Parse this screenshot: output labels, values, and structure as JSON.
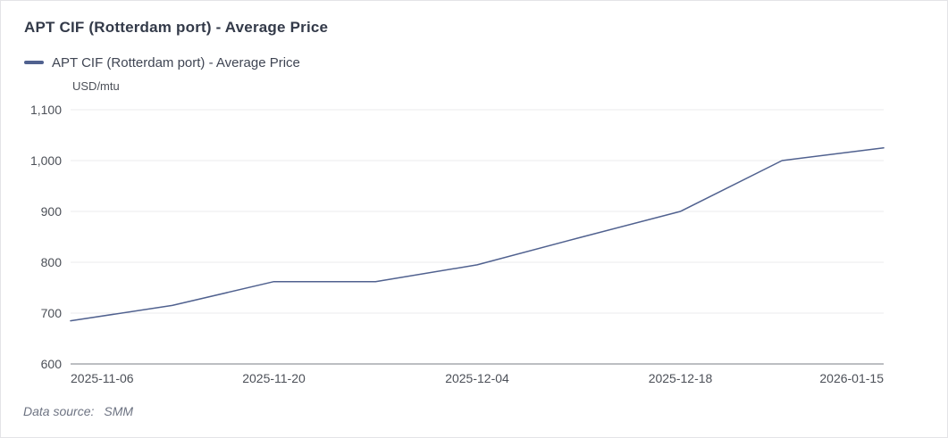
{
  "card": {
    "title": "APT CIF (Rotterdam port) - Average Price",
    "footer": {
      "label": "Data source:",
      "value": "SMM"
    }
  },
  "legend": {
    "label": "APT CIF (Rotterdam port) - Average Price",
    "marker_color": "#50618f"
  },
  "chart_data": {
    "type": "line",
    "title": "APT CIF (Rotterdam port) - Average Price",
    "series_name": "APT CIF (Rotterdam port) - Average Price",
    "unit_label": "USD/mtu",
    "categories": [
      "2025-11-06",
      "",
      "2025-11-20",
      "",
      "2025-12-04",
      "",
      "2025-12-18",
      "",
      "2026-01-15"
    ],
    "x_tick_labels": [
      "2025-11-06",
      "2025-11-20",
      "2025-12-04",
      "2025-12-18",
      "2026-01-15"
    ],
    "series": [
      {
        "name": "APT CIF (Rotterdam port) - Average Price",
        "values": [
          685,
          715,
          762,
          762,
          795,
          848,
          900,
          1000,
          1025
        ],
        "color": "#50618f"
      }
    ],
    "xlabel": "",
    "ylabel": "USD/mtu",
    "ylim": [
      600,
      1100
    ],
    "y_ticks": [
      600,
      700,
      800,
      900,
      1000,
      1100
    ],
    "y_tick_labels": [
      "600",
      "700",
      "800",
      "900",
      "1,000",
      "1,100"
    ],
    "grid": true,
    "legend_position": "top-left"
  },
  "colors": {
    "line": "#50618f",
    "grid": "#ebebee",
    "axis": "#797d86",
    "title_text": "#333a49",
    "tick_text": "#4c5058",
    "footer_text": "#6d7382",
    "card_border": "#e4e4e7",
    "background": "#ffffff"
  }
}
